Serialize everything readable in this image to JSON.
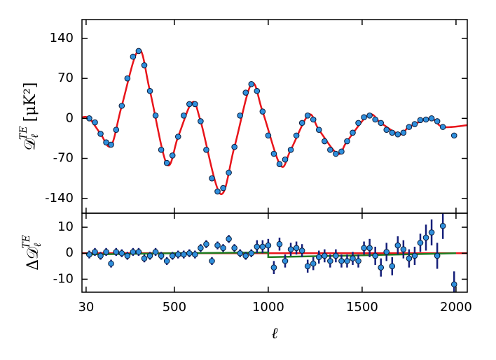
{
  "chart_data": [
    {
      "type": "scatter",
      "ylabel": {
        "main": "𝒟",
        "sub": "ℓ",
        "sup": "TE",
        "unit": "[μK²]"
      },
      "xlim": [
        8,
        2060
      ],
      "ylim": [
        -166,
        173
      ],
      "yticks": [
        140,
        70,
        0,
        -70,
        -140
      ],
      "series": [
        {
          "color": "#2f8fdc",
          "x": [
            47,
            77,
            107,
            137,
            163,
            190,
            220,
            250,
            280,
            310,
            340,
            370,
            400,
            430,
            460,
            490,
            520,
            550,
            580,
            610,
            640,
            670,
            700,
            730,
            760,
            790,
            820,
            850,
            880,
            910,
            940,
            970,
            1000,
            1030,
            1060,
            1090,
            1120,
            1150,
            1180,
            1210,
            1240,
            1270,
            1300,
            1330,
            1360,
            1390,
            1420,
            1450,
            1480,
            1510,
            1540,
            1570,
            1600,
            1630,
            1660,
            1690,
            1720,
            1750,
            1780,
            1810,
            1840,
            1870,
            1900,
            1930,
            1990
          ],
          "values": [
            0,
            -7,
            -27,
            -42,
            -46,
            -20,
            22,
            70,
            108,
            118,
            93,
            48,
            5,
            -55,
            -78,
            -65,
            -32,
            5,
            25,
            25,
            -5,
            -55,
            -105,
            -128,
            -122,
            -95,
            -50,
            5,
            45,
            60,
            48,
            12,
            -30,
            -62,
            -80,
            -72,
            -55,
            -30,
            -8,
            5,
            -2,
            -20,
            -40,
            -55,
            -62,
            -58,
            -40,
            -25,
            -8,
            2,
            5,
            -2,
            -8,
            -20,
            -25,
            -28,
            -25,
            -15,
            -10,
            -3,
            -2,
            0,
            -5,
            -15,
            -30
          ]
        },
        {
          "color": "#e8141a",
          "line": true,
          "x": [
            10,
            47,
            107,
            163,
            220,
            310,
            370,
            460,
            520,
            595,
            640,
            745,
            820,
            910,
            970,
            1065,
            1120,
            1215,
            1270,
            1370,
            1420,
            1535,
            1600,
            1700,
            1750,
            1865,
            1930,
            2060
          ],
          "values": [
            2,
            0,
            -27,
            -48,
            22,
            120,
            48,
            -80,
            -32,
            28,
            -5,
            -132,
            -50,
            60,
            12,
            -82,
            -55,
            6,
            -20,
            -62,
            -40,
            6,
            -8,
            -28,
            -15,
            0,
            -15,
            -12
          ]
        }
      ]
    },
    {
      "type": "scatter",
      "ylabel": {
        "main": "Δ𝒟",
        "sub": "ℓ",
        "sup": "TE"
      },
      "xlabel": "ℓ",
      "xlim": [
        8,
        2060
      ],
      "ylim": [
        -15,
        15.4
      ],
      "xticks": [
        30,
        500,
        1000,
        1500,
        2000
      ],
      "yticks": [
        10,
        0,
        -10
      ],
      "zero_line": {
        "value": 0,
        "color": "#e8141a"
      },
      "series": [
        {
          "color": "#2f8fdc",
          "error_color": "#16207a",
          "x": [
            47,
            77,
            107,
            137,
            163,
            190,
            220,
            250,
            280,
            310,
            340,
            370,
            400,
            430,
            460,
            490,
            520,
            550,
            580,
            610,
            640,
            670,
            700,
            730,
            760,
            790,
            820,
            850,
            880,
            910,
            940,
            970,
            1000,
            1030,
            1060,
            1090,
            1120,
            1150,
            1180,
            1210,
            1240,
            1270,
            1300,
            1330,
            1360,
            1390,
            1420,
            1450,
            1480,
            1510,
            1540,
            1570,
            1600,
            1630,
            1660,
            1690,
            1720,
            1750,
            1780,
            1810,
            1840,
            1870,
            1900,
            1930,
            1990
          ],
          "values": [
            -0.5,
            0.5,
            -1,
            0.5,
            -4,
            0.5,
            0,
            -1,
            0.5,
            0.5,
            -2,
            -1,
            0.5,
            -1,
            -3,
            -1,
            -0.5,
            -0.5,
            0,
            -0.5,
            2,
            3.5,
            -3,
            3,
            2,
            5.5,
            2,
            0,
            -1,
            0,
            2.5,
            2.5,
            3,
            -5.5,
            3.5,
            -3,
            1.5,
            2,
            1,
            -5,
            -4,
            -1.5,
            -1,
            -3,
            -1,
            -3,
            -3,
            -2,
            -3,
            2,
            2,
            -1,
            -5.5,
            0.5,
            -5,
            3,
            1.5,
            -2,
            -1,
            4,
            6,
            8,
            -1,
            10.5,
            -12
          ],
          "errors": [
            1.5,
            1.5,
            1.5,
            1.5,
            1.5,
            1.5,
            1.5,
            1.5,
            1.5,
            1.5,
            1.5,
            1.5,
            1.5,
            1.5,
            1.5,
            1.5,
            1.5,
            1.5,
            1.5,
            1.5,
            1.5,
            1.5,
            1.5,
            1.5,
            1.5,
            1.5,
            1.5,
            1.5,
            1.5,
            1.5,
            2.5,
            2.5,
            2.5,
            2.5,
            2.5,
            2.5,
            2.5,
            2.5,
            2.5,
            2.5,
            2.5,
            2.5,
            2.5,
            2.5,
            2.5,
            2.5,
            2.5,
            2.5,
            2.5,
            2.5,
            3.5,
            3.5,
            3.5,
            3.5,
            3.5,
            3.5,
            3.5,
            3.5,
            3.5,
            3.5,
            5,
            5,
            5,
            5,
            5
          ]
        },
        {
          "color": "#1f7a1f",
          "line": true,
          "x": [
            30,
            500,
            1000,
            1000,
            1500,
            2000
          ],
          "values": [
            -0.5,
            0,
            0.3,
            -1.5,
            -0.8,
            0
          ]
        }
      ]
    }
  ]
}
